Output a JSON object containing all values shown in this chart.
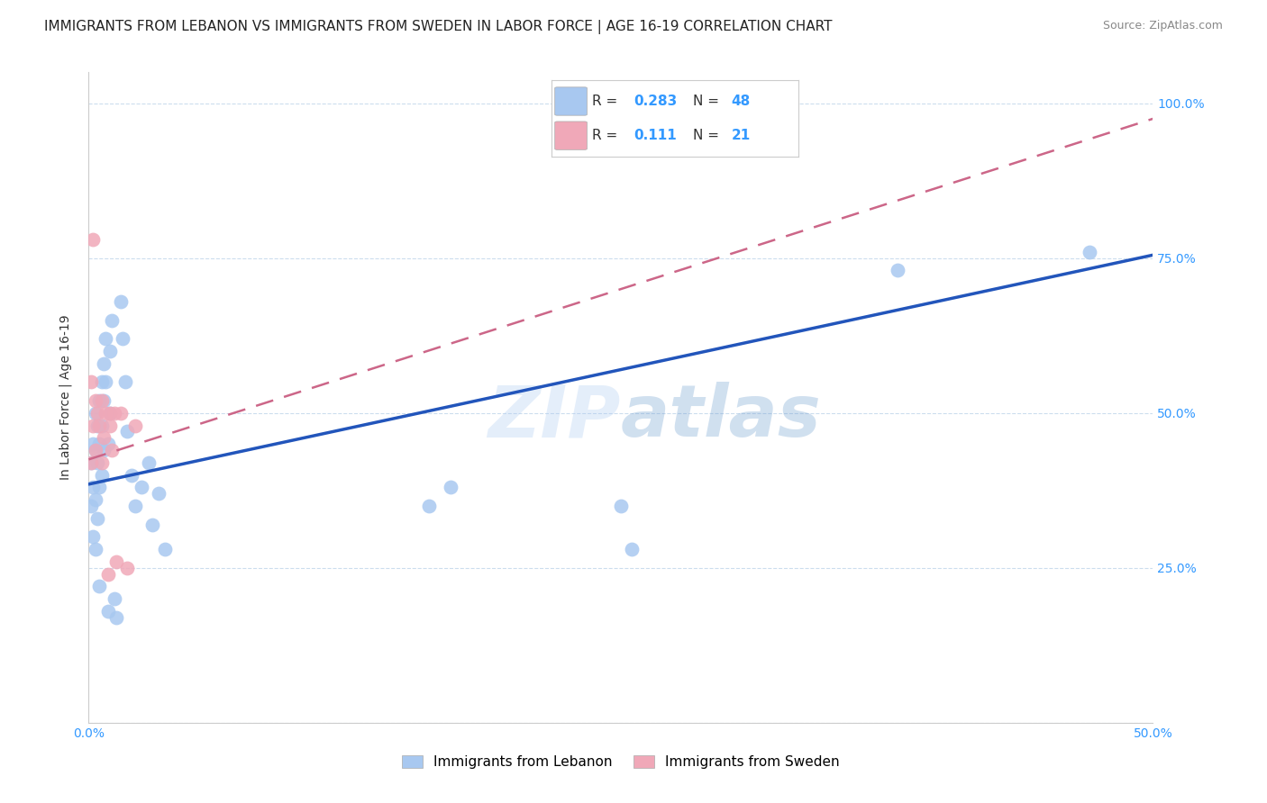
{
  "title": "IMMIGRANTS FROM LEBANON VS IMMIGRANTS FROM SWEDEN IN LABOR FORCE | AGE 16-19 CORRELATION CHART",
  "source": "Source: ZipAtlas.com",
  "ylabel_label": "In Labor Force | Age 16-19",
  "watermark": "ZIPatlas",
  "xmin": 0.0,
  "xmax": 0.5,
  "ymin": 0.0,
  "ymax": 1.05,
  "xticks": [
    0.0,
    0.1,
    0.2,
    0.3,
    0.4,
    0.5
  ],
  "xticklabels": [
    "0.0%",
    "",
    "",
    "",
    "",
    "50.0%"
  ],
  "yticks": [
    0.0,
    0.25,
    0.5,
    0.75,
    1.0
  ],
  "yticklabels": [
    "",
    "25.0%",
    "50.0%",
    "75.0%",
    "100.0%"
  ],
  "color_lebanon": "#a8c8f0",
  "color_sweden": "#f0a8b8",
  "line_color_lebanon": "#2255bb",
  "line_color_sweden": "#cc6688",
  "grid_color": "#ccddee",
  "lebanon_x": [
    0.001,
    0.001,
    0.002,
    0.002,
    0.002,
    0.003,
    0.003,
    0.003,
    0.003,
    0.004,
    0.004,
    0.004,
    0.005,
    0.005,
    0.005,
    0.005,
    0.006,
    0.006,
    0.006,
    0.007,
    0.007,
    0.007,
    0.008,
    0.008,
    0.009,
    0.009,
    0.01,
    0.01,
    0.011,
    0.012,
    0.013,
    0.015,
    0.016,
    0.017,
    0.018,
    0.02,
    0.022,
    0.025,
    0.028,
    0.03,
    0.033,
    0.036,
    0.16,
    0.17,
    0.25,
    0.255,
    0.38,
    0.47
  ],
  "lebanon_y": [
    0.42,
    0.35,
    0.45,
    0.38,
    0.3,
    0.5,
    0.44,
    0.36,
    0.28,
    0.48,
    0.42,
    0.33,
    0.52,
    0.45,
    0.38,
    0.22,
    0.55,
    0.48,
    0.4,
    0.58,
    0.52,
    0.44,
    0.62,
    0.55,
    0.45,
    0.18,
    0.6,
    0.5,
    0.65,
    0.2,
    0.17,
    0.68,
    0.62,
    0.55,
    0.47,
    0.4,
    0.35,
    0.38,
    0.42,
    0.32,
    0.37,
    0.28,
    0.35,
    0.38,
    0.35,
    0.28,
    0.73,
    0.76
  ],
  "sweden_x": [
    0.001,
    0.001,
    0.002,
    0.002,
    0.003,
    0.003,
    0.004,
    0.005,
    0.006,
    0.006,
    0.007,
    0.008,
    0.009,
    0.01,
    0.01,
    0.011,
    0.012,
    0.013,
    0.015,
    0.018,
    0.022
  ],
  "sweden_y": [
    0.55,
    0.42,
    0.78,
    0.48,
    0.52,
    0.44,
    0.5,
    0.48,
    0.42,
    0.52,
    0.46,
    0.5,
    0.24,
    0.5,
    0.48,
    0.44,
    0.5,
    0.26,
    0.5,
    0.25,
    0.48
  ],
  "leb_line_x0": 0.0,
  "leb_line_x1": 0.5,
  "leb_line_y0": 0.385,
  "leb_line_y1": 0.755,
  "swe_line_x0": 0.0,
  "swe_line_x1": 0.5,
  "swe_line_y0": 0.425,
  "swe_line_y1": 0.975,
  "title_fontsize": 11,
  "axis_label_fontsize": 10,
  "tick_fontsize": 10,
  "legend_fontsize": 11,
  "legend_r1_label": "R = ",
  "legend_r1_val": "0.283",
  "legend_n1_label": "N = ",
  "legend_n1_val": "48",
  "legend_r2_label": "R =  ",
  "legend_r2_val": "0.111",
  "legend_n2_label": "N = ",
  "legend_n2_val": "21",
  "bottom_legend_leb": "Immigrants from Lebanon",
  "bottom_legend_swe": "Immigrants from Sweden"
}
